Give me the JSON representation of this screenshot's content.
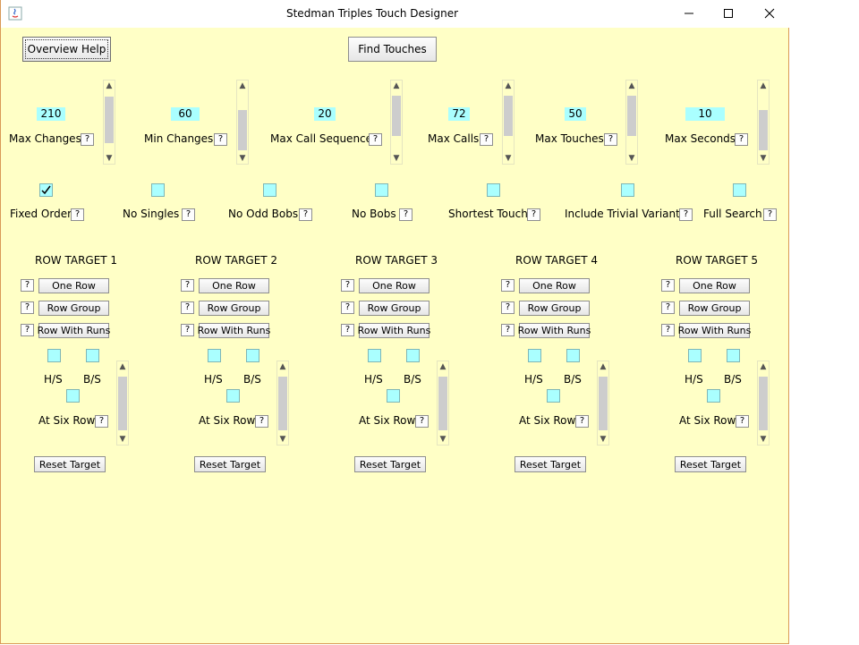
{
  "window": {
    "title": "Stedman Triples Touch Designer",
    "minimize": "—",
    "maximize": "☐",
    "close": "✕"
  },
  "top_buttons": {
    "overview_help": "Overview Help",
    "find_touches": "Find Touches"
  },
  "help_label": "?",
  "params": [
    {
      "label": "Max Changes",
      "value": "210"
    },
    {
      "label": "Min Changes",
      "value": "60"
    },
    {
      "label": "Max Call Sequence",
      "value": "20"
    },
    {
      "label": "Max Calls",
      "value": "72"
    },
    {
      "label": "Max Touches",
      "value": "50"
    },
    {
      "label": "Max Seconds",
      "value": "10"
    }
  ],
  "options": [
    {
      "label": "Fixed Order",
      "checked": true
    },
    {
      "label": "No Singles",
      "checked": false
    },
    {
      "label": "No Odd Bobs",
      "checked": false
    },
    {
      "label": "No Bobs",
      "checked": false
    },
    {
      "label": "Shortest Touch",
      "checked": false
    },
    {
      "label": "Include Trivial Variants",
      "checked": false
    },
    {
      "label": "Full Search",
      "checked": false
    }
  ],
  "row_target": {
    "titles": [
      "ROW TARGET 1",
      "ROW TARGET 2",
      "ROW TARGET 3",
      "ROW TARGET 4",
      "ROW TARGET 5"
    ],
    "one_row": "One Row",
    "row_group": "Row Group",
    "row_with_runs": "Row With Runs",
    "hs": "H/S",
    "bs": "B/S",
    "at_six_row": "At Six Row",
    "reset": "Reset Target"
  },
  "colors": {
    "background": "#ffffc6",
    "field": "#aaffff",
    "border": "#d99a57"
  }
}
